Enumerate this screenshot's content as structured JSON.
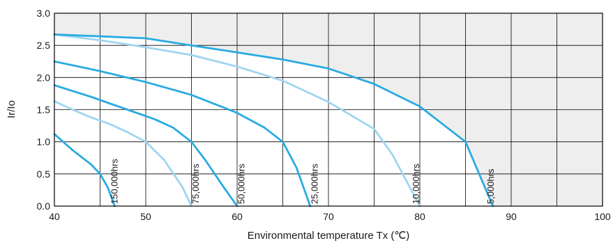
{
  "chart_data": {
    "type": "line",
    "xlabel": "Environmental temperature Tx (℃)",
    "ylabel": "Ir/Io",
    "xlim": [
      40,
      100
    ],
    "ylim": [
      0,
      3.0
    ],
    "x_ticks": [
      "40",
      "50",
      "60",
      "70",
      "80",
      "90",
      "100"
    ],
    "y_ticks": [
      "0.0",
      "0.5",
      "1.0",
      "1.5",
      "2.0",
      "2.5",
      "3.0"
    ],
    "grid": true,
    "x_grid_step": 5,
    "y_grid_step": 0.5,
    "background_color": "#ffffff",
    "shaded_region_color": "#eeeeee",
    "grid_color": "#000000",
    "series": [
      {
        "name": "150,000hrs",
        "color": "#29abe2",
        "label_x": 46.6,
        "points": [
          [
            40,
            1.12
          ],
          [
            42,
            0.87
          ],
          [
            44,
            0.65
          ],
          [
            45,
            0.5
          ],
          [
            45.8,
            0.3
          ],
          [
            46.3,
            0.12
          ],
          [
            46.6,
            0.0
          ]
        ]
      },
      {
        "name": "75,000hrs",
        "color": "#9fd5f0",
        "points": [
          [
            40,
            1.63
          ],
          [
            42,
            1.5
          ],
          [
            44,
            1.38
          ],
          [
            46,
            1.28
          ],
          [
            48,
            1.15
          ],
          [
            50,
            1.0
          ],
          [
            52,
            0.72
          ],
          [
            54,
            0.3
          ],
          [
            55,
            0.0
          ]
        ]
      },
      {
        "name": "75,000hrs",
        "color": "#29abe2",
        "label_x": 55.5,
        "points": [
          [
            40,
            1.88
          ],
          [
            44,
            1.7
          ],
          [
            48,
            1.5
          ],
          [
            51,
            1.35
          ],
          [
            53,
            1.22
          ],
          [
            55,
            1.0
          ],
          [
            56.5,
            0.72
          ],
          [
            58.5,
            0.3
          ],
          [
            60,
            0.0
          ]
        ]
      },
      {
        "name": "50,000hrs",
        "color": "#29abe2",
        "label_x": 60.5,
        "points": [
          [
            40,
            2.25
          ],
          [
            45,
            2.1
          ],
          [
            50,
            1.93
          ],
          [
            55,
            1.73
          ],
          [
            60,
            1.45
          ],
          [
            63,
            1.22
          ],
          [
            65,
            1.0
          ],
          [
            66.5,
            0.6
          ],
          [
            68,
            0.0
          ]
        ]
      },
      {
        "name": "25,000hrs",
        "color": "#9fd5f0",
        "label_x": 68.5,
        "points": [
          [
            40,
            2.67
          ],
          [
            45,
            2.58
          ],
          [
            50,
            2.47
          ],
          [
            55,
            2.35
          ],
          [
            60,
            2.17
          ],
          [
            65,
            1.95
          ],
          [
            70,
            1.62
          ],
          [
            75,
            1.2
          ],
          [
            77,
            0.8
          ],
          [
            78.5,
            0.4
          ],
          [
            80,
            0.0
          ]
        ]
      },
      {
        "name": "10,000hrs",
        "color": "#29abe2",
        "label_x": 79.6,
        "points": [
          [
            40,
            2.67
          ],
          [
            45,
            2.64
          ],
          [
            50,
            2.61
          ],
          [
            55,
            2.5
          ],
          [
            60,
            2.39
          ],
          [
            65,
            2.28
          ],
          [
            70,
            2.14
          ],
          [
            75,
            1.9
          ],
          [
            80,
            1.55
          ],
          [
            85,
            1.0
          ],
          [
            86.5,
            0.5
          ],
          [
            88,
            0.0
          ]
        ]
      },
      {
        "name": "5,000hrs",
        "color": "#29abe2",
        "label_x": 87.8,
        "points": [
          [
            40,
            2.67
          ],
          [
            40.01,
            2.67
          ]
        ]
      }
    ]
  }
}
